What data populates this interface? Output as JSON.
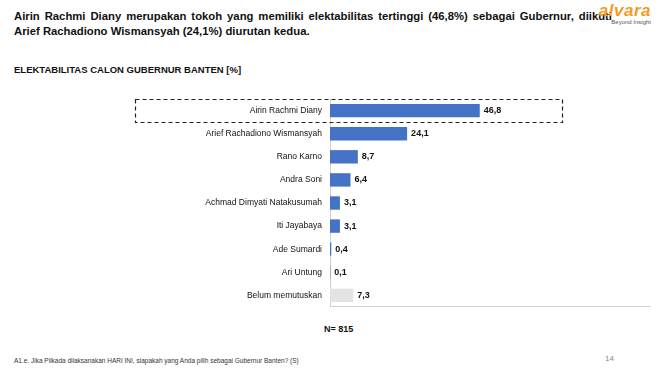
{
  "slide": {
    "headline": "Airin Rachmi Diany merupakan tokoh yang memiliki elektabilitas tertinggi (46,8%) sebagai Gubernur, diikuti Arief Rachadiono Wismansyah (24,1%) diurutan kedua.",
    "logo": "alvara",
    "logo_tagline": "Beyond Insight",
    "note": "A1.e. Jika Pilkada dilaksanakan HARI INI, siapakah yang Anda pilih sebagai Gubernur Banten? (S)",
    "page": 14
  },
  "chart_data": {
    "type": "bar",
    "orientation": "horizontal",
    "title": "ELEKTABILITAS CALON GUBERNUR BANTEN [%]",
    "categories": [
      "Airin Rachmi Diany",
      "Arief Rachadiono Wismansyah",
      "Rano Karno",
      "Andra Soni",
      "Achmad Dimyati Natakusumah",
      "Iti Jayabaya",
      "Ade Sumardi",
      "Ari Untung",
      "Belum memutuskan"
    ],
    "values": [
      46.8,
      24.1,
      8.7,
      6.4,
      3.1,
      3.1,
      0.4,
      0.1,
      7.3
    ],
    "value_labels": [
      "46,8",
      "24,1",
      "8,7",
      "6,4",
      "3,1",
      "3,1",
      "0,4",
      "0,1",
      "7,3"
    ],
    "colors": [
      "#4472c4",
      "#4472c4",
      "#4472c4",
      "#4472c4",
      "#4472c4",
      "#4472c4",
      "#4472c4",
      "#4472c4",
      "#e3e3e3"
    ],
    "xlim": [
      0,
      100
    ],
    "data_labels": true,
    "tick_labels": "y",
    "grid": false,
    "annotations": [
      "N= 815"
    ]
  }
}
